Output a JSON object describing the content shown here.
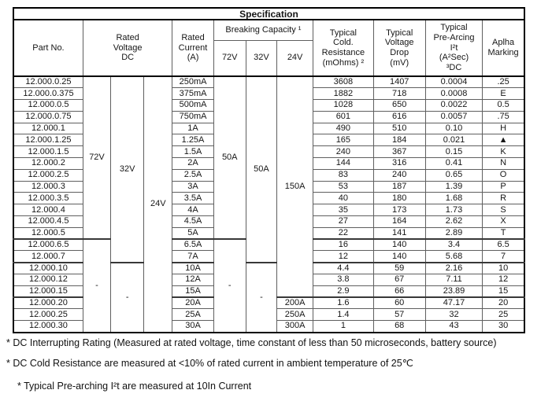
{
  "table": {
    "title": "Specification",
    "header": {
      "part_no": "Part No.",
      "rated_voltage": "Rated\nVoltage\nDC",
      "rated_current": "Rated\nCurrent\n(A)",
      "breaking_capacity": "Breaking Capacity ¹",
      "breaking_subcols": [
        "72V",
        "32V",
        "24V"
      ],
      "cold_resistance": "Typical\nCold.\nResistance\n(mOhms) ²",
      "voltage_drop": "Typical\nVoltage\nDrop\n(mV)",
      "pre_arcing": "Typical\nPre-Arcing\nI²t\n(A²Sec)\n³DC",
      "alpha_marking": "Aplha\nMarking"
    },
    "merged_columns": {
      "rv72": [
        {
          "label": "72V",
          "span": 14
        },
        {
          "label": "-",
          "span": 8
        }
      ],
      "rv32": [
        {
          "label": "32V",
          "span": 16
        },
        {
          "label": "-",
          "span": 6
        }
      ],
      "rv24": [
        {
          "label": "24V",
          "span": 22
        }
      ],
      "bc72": [
        {
          "label": "50A",
          "span": 14
        },
        {
          "label": "-",
          "span": 8
        }
      ],
      "bc32": [
        {
          "label": "50A",
          "span": 16
        },
        {
          "label": "-",
          "span": 6
        }
      ],
      "bc24": [
        {
          "label": "150A",
          "span": 19
        },
        {
          "label": "200A",
          "span": 1
        },
        {
          "label": "250A",
          "span": 1
        },
        {
          "label": "300A",
          "span": 1
        }
      ]
    },
    "group_start_rows": [
      14,
      16,
      19
    ],
    "rows": [
      {
        "part": "12.000.0.25",
        "current": "250mA",
        "cold": "3608",
        "drop": "1407",
        "prearc": "0.0004",
        "mark": ".25"
      },
      {
        "part": "12.000.0.375",
        "current": "375mA",
        "cold": "1882",
        "drop": "718",
        "prearc": "0.0008",
        "mark": "E"
      },
      {
        "part": "12.000.0.5",
        "current": "500mA",
        "cold": "1028",
        "drop": "650",
        "prearc": "0.0022",
        "mark": "0.5"
      },
      {
        "part": "12.000.0.75",
        "current": "750mA",
        "cold": "601",
        "drop": "616",
        "prearc": "0.0057",
        "mark": ".75"
      },
      {
        "part": "12.000.1",
        "current": "1A",
        "cold": "490",
        "drop": "510",
        "prearc": "0.10",
        "mark": "H"
      },
      {
        "part": "12.000.1.25",
        "current": "1.25A",
        "cold": "165",
        "drop": "184",
        "prearc": "0.021",
        "mark": "▲"
      },
      {
        "part": "12.000.1.5",
        "current": "1.5A",
        "cold": "240",
        "drop": "367",
        "prearc": "0.15",
        "mark": "K"
      },
      {
        "part": "12.000.2",
        "current": "2A",
        "cold": "144",
        "drop": "316",
        "prearc": "0.41",
        "mark": "N"
      },
      {
        "part": "12.000.2.5",
        "current": "2.5A",
        "cold": "83",
        "drop": "240",
        "prearc": "0.65",
        "mark": "O"
      },
      {
        "part": "12.000.3",
        "current": "3A",
        "cold": "53",
        "drop": "187",
        "prearc": "1.39",
        "mark": "P"
      },
      {
        "part": "12.000.3.5",
        "current": "3.5A",
        "cold": "40",
        "drop": "180",
        "prearc": "1.68",
        "mark": "R"
      },
      {
        "part": "12.000.4",
        "current": "4A",
        "cold": "35",
        "drop": "173",
        "prearc": "1.73",
        "mark": "S"
      },
      {
        "part": "12.000.4.5",
        "current": "4.5A",
        "cold": "27",
        "drop": "164",
        "prearc": "2.62",
        "mark": "X"
      },
      {
        "part": "12.000.5",
        "current": "5A",
        "cold": "22",
        "drop": "141",
        "prearc": "2.89",
        "mark": "T"
      },
      {
        "part": "12.000.6.5",
        "current": "6.5A",
        "cold": "16",
        "drop": "140",
        "prearc": "3.4",
        "mark": "6.5"
      },
      {
        "part": "12.000.7",
        "current": "7A",
        "cold": "12",
        "drop": "140",
        "prearc": "5.68",
        "mark": "7"
      },
      {
        "part": "12.000.10",
        "current": "10A",
        "cold": "4.4",
        "drop": "59",
        "prearc": "2.16",
        "mark": "10"
      },
      {
        "part": "12.000.12",
        "current": "12A",
        "cold": "3.8",
        "drop": "67",
        "prearc": "7.11",
        "mark": "12"
      },
      {
        "part": "12.000.15",
        "current": "15A",
        "cold": "2.9",
        "drop": "66",
        "prearc": "23.89",
        "mark": "15"
      },
      {
        "part": "12.000.20",
        "current": "20A",
        "cold": "1.6",
        "drop": "60",
        "prearc": "47.17",
        "mark": "20"
      },
      {
        "part": "12.000.25",
        "current": "25A",
        "cold": "1.4",
        "drop": "57",
        "prearc": "32",
        "mark": "25"
      },
      {
        "part": "12.000.30",
        "current": "30A",
        "cold": "1",
        "drop": "68",
        "prearc": "43",
        "mark": "30"
      }
    ]
  },
  "footnotes": [
    "* DC Interrupting Rating (Measured at rated voltage, time constant of less than 50 microseconds, battery source)",
    "* DC Cold Resistance are measured at <10% of rated current in ambient temperature of 25℃",
    "* Typical Pre-arching I²t are measured at 10In Current"
  ]
}
